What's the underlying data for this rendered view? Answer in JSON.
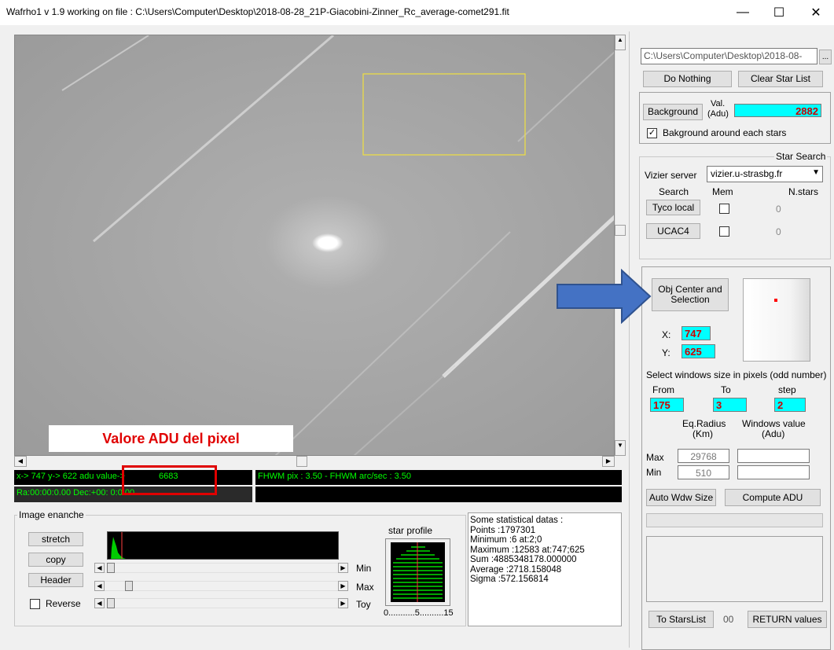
{
  "window": {
    "title": "Wafrho1 v 1.9 working on file : C:\\Users\\Computer\\Desktop\\2018-08-28_21P-Giacobini-Zinner_Rc_average-comet291.fit",
    "minimize": "—",
    "maximize": "☐",
    "close": "✕"
  },
  "annotation": {
    "label": "Valore ADU del pixel",
    "color": "#e00000",
    "arrow_color": "#4472c4"
  },
  "status": {
    "xy_adu": "x-> 747 y-> 622 adu value->",
    "adu_value": "6683",
    "radec": "Ra:00:00:0.00 Dec:+00: 0:0.00",
    "fwhm": "FHWM pix : 3.50 - FHWM arc/sec : 3.50"
  },
  "image_enhance": {
    "title": "Image enanche",
    "stretch": "stretch",
    "copy": "copy",
    "header": "Header",
    "reverse": "Reverse",
    "min": "Min",
    "max": "Max",
    "toy": "Toy"
  },
  "star_profile": {
    "title": "star profile",
    "axis": "0...........5..........15"
  },
  "stats": {
    "heading": "Some statistical datas :",
    "points": "Points :1797301",
    "minimum": "Minimum :6 at:2;0",
    "maximum": "Maximum :12583 at:747;625",
    "sum": "Sum    :4885348178.000000",
    "average": "Average :2718.158048",
    "sigma": "Sigma  :572.156814"
  },
  "right_panel": {
    "file_path": "C:\\Users\\Computer\\Desktop\\2018-08-",
    "browse": "...",
    "do_nothing": "Do Nothing",
    "clear_star_list": "Clear Star List",
    "background_button": "Background",
    "val_label": "Val.",
    "adu_label": "(Adu)",
    "background_value": "2882",
    "background_around": "Bakground around each stars",
    "star_search_title": "Star Search",
    "vizier_label": "Vizier server",
    "vizier_value": "vizier.u-strasbg.fr",
    "search_label": "Search",
    "mem_label": "Mem",
    "nstars_label": "N.stars",
    "tyco_button": "Tyco local",
    "tyco_count": "0",
    "ucac_button": "UCAC4",
    "ucac_count": "0",
    "obj_center_button": "Obj Center and Selection",
    "x_label": "X:",
    "x_value": "747",
    "y_label": "Y:",
    "y_value": "625",
    "window_size_label": "Select windows size in pixels (odd number)",
    "from_label": "From",
    "to_label": "To",
    "step_label": "step",
    "from_value": "175",
    "to_value": "3",
    "step_value": "2",
    "eq_radius_label": "Eq.Radius",
    "km_label": "(Km)",
    "windows_value_label": "Windows value",
    "adu2_label": "(Adu)",
    "max_label": "Max",
    "max_value": "29768",
    "min_label": "Min",
    "min_value": "510",
    "auto_wdw": "Auto Wdw Size",
    "compute_adu": "Compute ADU",
    "to_starslist": "To StarsList",
    "stars_count": "00",
    "return_values": "RETURN values"
  }
}
